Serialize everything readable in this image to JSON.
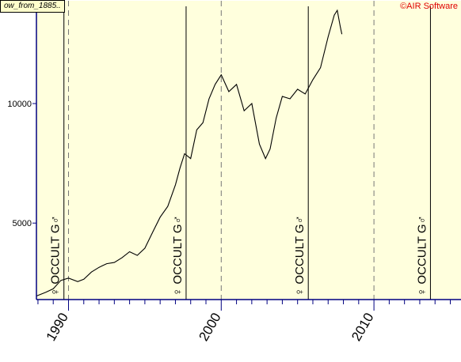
{
  "header": {
    "series_tag": "ow_from_1885..",
    "copyright": "©AIR Software"
  },
  "colors": {
    "plot_bg": "#ffffdd",
    "border": "#000080",
    "line": "#000000",
    "grid": "#777777",
    "copyright": "#e00000"
  },
  "chart_data": {
    "type": "line",
    "title": "",
    "xlabel": "",
    "ylabel": "",
    "xlim": [
      1987.9,
      2015.7
    ],
    "ylim": [
      1800,
      14300
    ],
    "y_ticks": [
      5000,
      10000
    ],
    "x_ticks": [
      1990,
      2000,
      2010
    ],
    "grid": "vertical dashed lines at decade ticks",
    "series": [
      {
        "values": [
          [
            1987.9,
            1950
          ],
          [
            1988.5,
            2100
          ],
          [
            1989.0,
            2250
          ],
          [
            1989.5,
            2600
          ],
          [
            1990.0,
            2700
          ],
          [
            1990.6,
            2550
          ],
          [
            1991.0,
            2650
          ],
          [
            1991.5,
            2950
          ],
          [
            1992.0,
            3150
          ],
          [
            1992.5,
            3300
          ],
          [
            1993.0,
            3350
          ],
          [
            1993.5,
            3550
          ],
          [
            1994.0,
            3800
          ],
          [
            1994.5,
            3650
          ],
          [
            1995.0,
            3950
          ],
          [
            1995.5,
            4600
          ],
          [
            1996.0,
            5250
          ],
          [
            1996.5,
            5700
          ],
          [
            1997.0,
            6600
          ],
          [
            1997.3,
            7300
          ],
          [
            1997.6,
            7900
          ],
          [
            1998.0,
            7700
          ],
          [
            1998.4,
            8900
          ],
          [
            1998.8,
            9200
          ],
          [
            1999.2,
            10200
          ],
          [
            1999.6,
            10800
          ],
          [
            2000.0,
            11200
          ],
          [
            2000.5,
            10500
          ],
          [
            2001.0,
            10800
          ],
          [
            2001.5,
            9700
          ],
          [
            2002.0,
            10000
          ],
          [
            2002.5,
            8300
          ],
          [
            2002.9,
            7700
          ],
          [
            2003.2,
            8100
          ],
          [
            2003.6,
            9400
          ],
          [
            2004.0,
            10300
          ],
          [
            2004.5,
            10200
          ],
          [
            2005.0,
            10600
          ],
          [
            2005.5,
            10400
          ],
          [
            2006.0,
            11000
          ],
          [
            2006.5,
            11500
          ],
          [
            2007.0,
            12800
          ],
          [
            2007.4,
            13700
          ],
          [
            2007.6,
            13900
          ],
          [
            2007.8,
            13200
          ],
          [
            2007.9,
            12900
          ]
        ]
      }
    ],
    "markers": [
      {
        "x": 1989.7,
        "label": "♀ OCCULT G♂"
      },
      {
        "x": 1997.7,
        "label": "♀ OCCULT G♂"
      },
      {
        "x": 2005.7,
        "label": "♀ OCCULT G♂"
      },
      {
        "x": 2013.7,
        "label": "♀ OCCULT G♂"
      }
    ]
  }
}
